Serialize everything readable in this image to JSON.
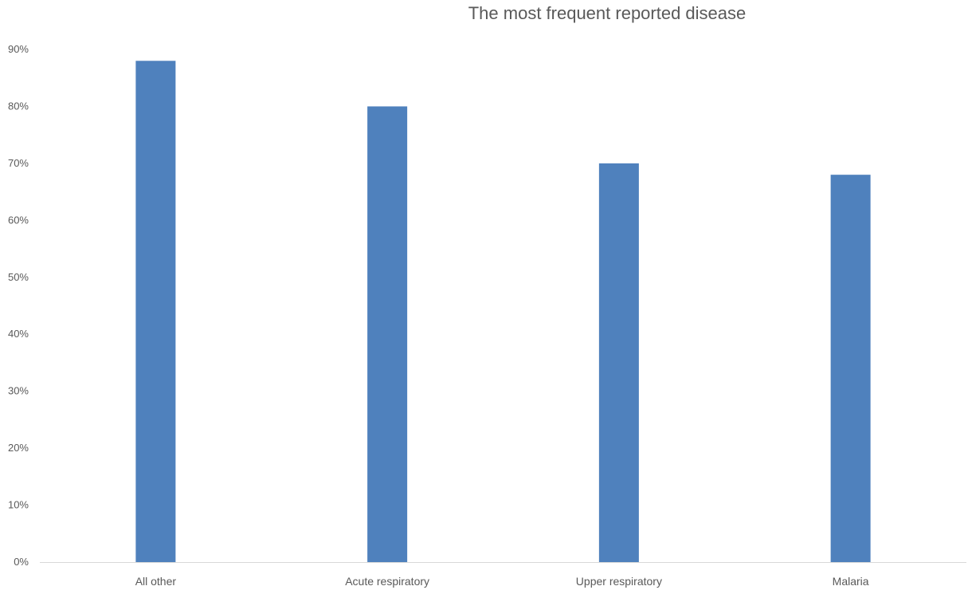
{
  "chart_data": {
    "type": "bar",
    "title": "The most frequent reported disease",
    "xlabel": "",
    "ylabel": "",
    "categories": [
      "All other",
      "Acute respiratory",
      "Upper respiratory",
      "Malaria"
    ],
    "values": [
      88,
      80,
      70,
      68
    ],
    "ylim": [
      0,
      90
    ],
    "y_ticks": [
      "0%",
      "10%",
      "20%",
      "30%",
      "40%",
      "50%",
      "60%",
      "70%",
      "80%",
      "90%"
    ],
    "grid": false,
    "legend": "none",
    "bar_color": "#4F81BD"
  }
}
